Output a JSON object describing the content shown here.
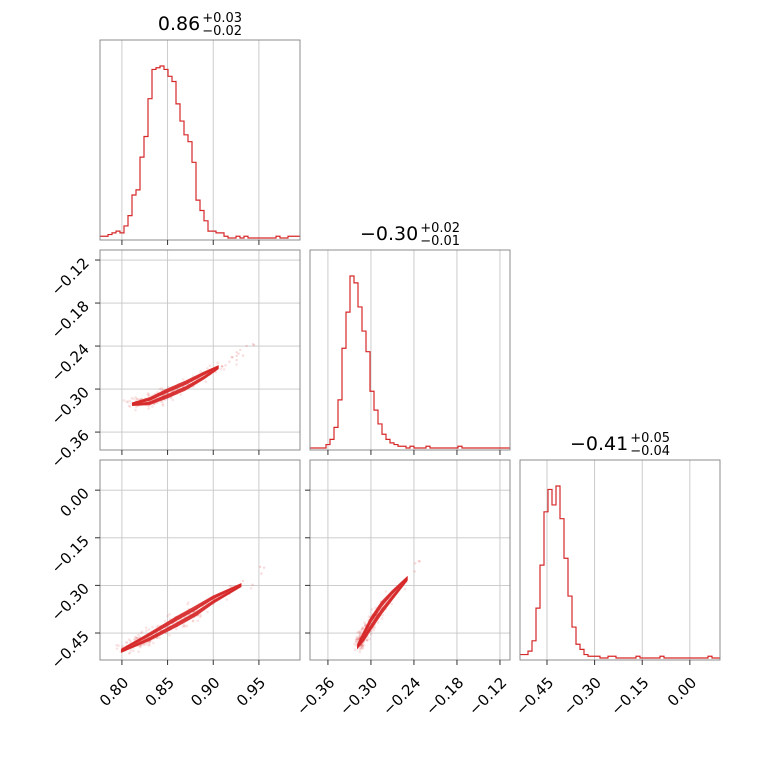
{
  "colors": {
    "series": "#d62728",
    "grid": "#c6c6c6",
    "frame": "#808080"
  },
  "chart_data": {
    "type": "corner",
    "parameters": [
      {
        "title": {
          "median": "0.86",
          "plus": "+0.03",
          "minus": "−0.02"
        },
        "range": [
          0.776,
          0.995
        ],
        "ticks": [
          "0.80",
          "0.85",
          "0.90",
          "0.95"
        ],
        "tick_values": [
          0.8,
          0.85,
          0.9,
          0.95
        ]
      },
      {
        "title": {
          "median": "−0.30",
          "plus": "+0.02",
          "minus": "−0.01"
        },
        "range": [
          -0.385,
          -0.106
        ],
        "ticks": [
          "−0.36",
          "−0.30",
          "−0.24",
          "−0.18",
          "−0.12"
        ],
        "tick_values": [
          -0.36,
          -0.3,
          -0.24,
          -0.18,
          -0.12
        ]
      },
      {
        "title": {
          "median": "−0.41",
          "plus": "+0.05",
          "minus": "−0.04"
        },
        "range": [
          -0.535,
          0.095
        ],
        "ticks": [
          "−0.45",
          "−0.30",
          "−0.15",
          "0.00"
        ],
        "tick_values": [
          -0.45,
          -0.3,
          -0.15,
          0.0
        ]
      }
    ],
    "histograms": [
      {
        "param": 0,
        "bin_width": 0.00438,
        "counts": [
          1,
          1,
          2,
          3,
          4,
          3,
          7,
          13,
          25,
          28,
          47,
          59,
          81,
          98,
          99,
          100,
          98,
          94,
          91,
          78,
          68,
          60,
          56,
          44,
          22,
          16,
          10,
          4,
          4,
          3,
          3,
          1,
          0,
          0,
          1,
          0,
          1,
          0,
          0,
          0,
          0,
          0,
          0,
          0,
          1,
          0,
          0,
          1,
          1,
          1
        ]
      },
      {
        "param": 1,
        "bin_width": 0.00558,
        "counts": [
          0,
          0,
          0,
          0,
          2,
          5,
          12,
          28,
          58,
          79,
          100,
          96,
          82,
          68,
          56,
          33,
          22,
          14,
          8,
          5,
          3,
          2,
          1,
          1,
          0,
          1,
          0,
          0,
          0,
          1,
          0,
          0,
          0,
          0,
          0,
          0,
          0,
          1,
          0,
          0,
          0,
          0,
          0,
          0,
          0,
          0,
          0,
          0,
          0,
          0
        ]
      },
      {
        "param": 2,
        "bin_width": 0.0126,
        "counts": [
          2,
          2,
          4,
          10,
          29,
          54,
          85,
          98,
          89,
          100,
          81,
          58,
          36,
          18,
          8,
          5,
          2,
          1,
          1,
          1,
          0,
          0,
          1,
          1,
          0,
          0,
          0,
          0,
          0,
          1,
          0,
          0,
          0,
          0,
          0,
          1,
          0,
          0,
          0,
          0,
          0,
          0,
          0,
          0,
          0,
          0,
          0,
          1,
          0,
          0
        ]
      }
    ],
    "scatter_panels": [
      {
        "x_param": 0,
        "y_param": 1,
        "relation": "y = -0.335 + 0.0005*((x-0.82)/0.05) + 0.03*((x-0.82)/0.05)^2 ... (tight curved ridge)",
        "core_points": [
          [
            0.812,
            -0.321
          ],
          [
            0.83,
            -0.317
          ],
          [
            0.85,
            -0.306
          ],
          [
            0.87,
            -0.295
          ],
          [
            0.89,
            -0.281
          ],
          [
            0.905,
            -0.27
          ],
          [
            0.93,
            -0.25
          ],
          [
            0.95,
            -0.232
          ]
        ]
      },
      {
        "x_param": 0,
        "y_param": 2,
        "core_points": [
          [
            0.8,
            -0.505
          ],
          [
            0.83,
            -0.462
          ],
          [
            0.86,
            -0.414
          ],
          [
            0.88,
            -0.382
          ],
          [
            0.9,
            -0.345
          ],
          [
            0.93,
            -0.3
          ],
          [
            0.96,
            -0.24
          ]
        ]
      },
      {
        "x_param": 1,
        "y_param": 2,
        "core_points": [
          [
            -0.318,
            -0.49
          ],
          [
            -0.31,
            -0.46
          ],
          [
            -0.3,
            -0.42
          ],
          [
            -0.285,
            -0.37
          ],
          [
            -0.27,
            -0.33
          ],
          [
            -0.25,
            -0.28
          ],
          [
            -0.23,
            -0.22
          ]
        ]
      }
    ],
    "grid": true
  }
}
